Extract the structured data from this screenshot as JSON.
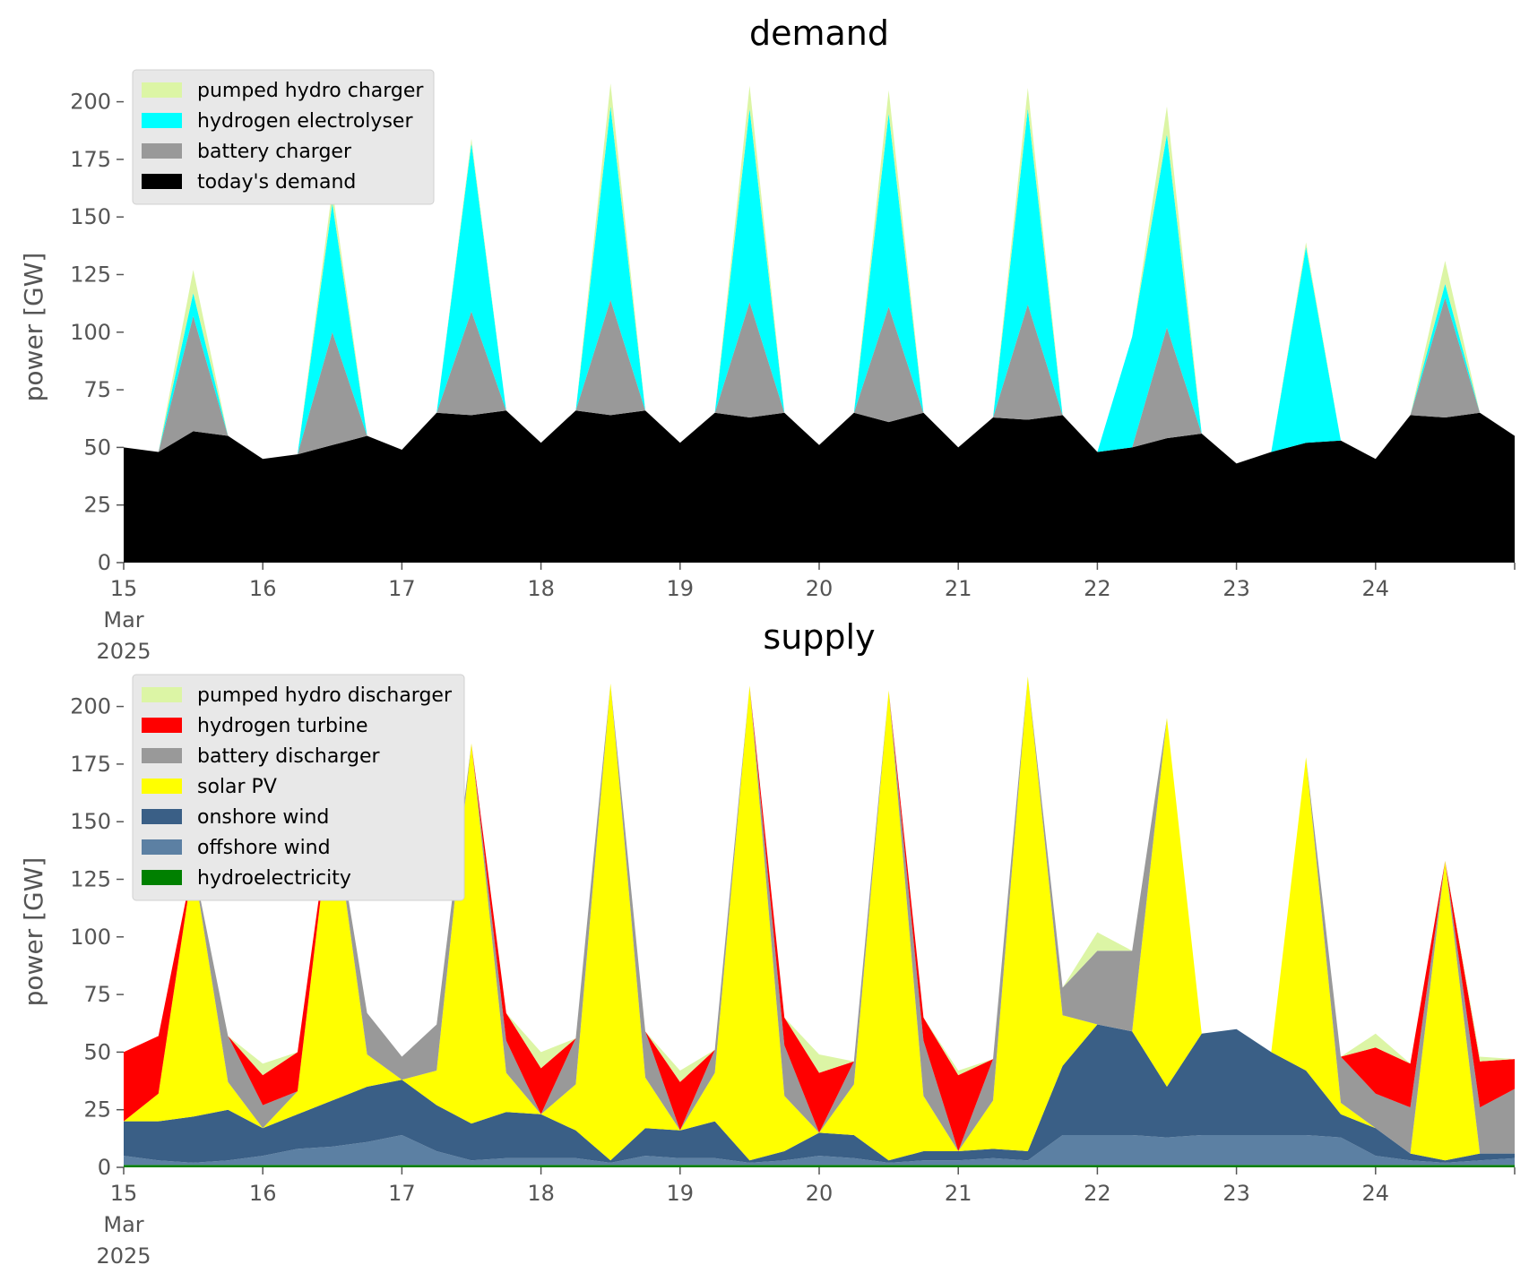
{
  "chart_data": [
    {
      "type": "area",
      "title": "demand",
      "ylabel": "power [GW]",
      "xlabel": "",
      "ylim": [
        0,
        215
      ],
      "yticks": [
        0,
        25,
        50,
        75,
        100,
        125,
        150,
        175,
        200
      ],
      "x_tick_labels": [
        "15\nMar\n2025",
        "16",
        "17",
        "18",
        "19",
        "20",
        "21",
        "22",
        "23",
        "24"
      ],
      "x_range_days": [
        "2025-03-15",
        "2025-03-25"
      ],
      "legend_position": "upper-left",
      "legend": [
        "pumped hydro charger",
        "hydrogen electrolyser",
        "battery charger",
        "today's demand"
      ],
      "stacked": true,
      "x": [
        15.0,
        15.25,
        15.5,
        15.75,
        16.0,
        16.25,
        16.5,
        16.75,
        17.0,
        17.25,
        17.5,
        17.75,
        18.0,
        18.25,
        18.5,
        18.75,
        19.0,
        19.25,
        19.5,
        19.75,
        20.0,
        20.25,
        20.5,
        20.75,
        21.0,
        21.25,
        21.5,
        21.75,
        22.0,
        22.25,
        22.5,
        22.75,
        23.0,
        23.25,
        23.5,
        23.75,
        24.0,
        24.25,
        24.5,
        24.75,
        25.0
      ],
      "series": [
        {
          "name": "today's demand",
          "color": "#000000",
          "values": [
            50,
            48,
            57,
            55,
            45,
            47,
            51,
            55,
            49,
            65,
            64,
            66,
            52,
            66,
            64,
            66,
            52,
            65,
            63,
            65,
            51,
            65,
            61,
            65,
            50,
            63,
            62,
            64,
            48,
            50,
            54,
            56,
            43,
            48,
            52,
            53,
            45,
            64,
            63,
            65,
            55
          ]
        },
        {
          "name": "battery charger",
          "color": "#999999",
          "values": [
            0,
            0,
            50,
            0,
            0,
            0,
            49,
            0,
            0,
            0,
            45,
            0,
            0,
            0,
            50,
            0,
            0,
            0,
            50,
            0,
            0,
            0,
            50,
            0,
            0,
            0,
            50,
            0,
            0,
            0,
            48,
            0,
            0,
            0,
            0,
            0,
            0,
            0,
            52,
            0,
            0
          ]
        },
        {
          "name": "hydrogen electrolyser",
          "color": "#00ffff",
          "values": [
            0,
            0,
            10,
            0,
            0,
            0,
            56,
            0,
            0,
            0,
            73,
            0,
            0,
            0,
            84,
            0,
            0,
            0,
            84,
            0,
            0,
            0,
            84,
            0,
            0,
            0,
            85,
            0,
            0,
            48,
            84,
            0,
            0,
            0,
            85,
            0,
            0,
            0,
            6,
            0,
            0
          ]
        },
        {
          "name": "pumped hydro charger",
          "color": "#dcf5a5",
          "values": [
            0,
            0,
            10,
            0,
            0,
            0,
            6,
            0,
            0,
            0,
            2,
            0,
            0,
            0,
            10,
            0,
            0,
            0,
            10,
            0,
            0,
            0,
            10,
            0,
            0,
            0,
            9,
            0,
            0,
            0,
            12,
            0,
            0,
            0,
            2,
            0,
            0,
            0,
            10,
            0,
            0
          ]
        }
      ]
    },
    {
      "type": "area",
      "title": "supply",
      "ylabel": "power [GW]",
      "xlabel": "",
      "ylim": [
        0,
        215
      ],
      "yticks": [
        0,
        25,
        50,
        75,
        100,
        125,
        150,
        175,
        200
      ],
      "x_tick_labels": [
        "15\nMar\n2025",
        "16",
        "17",
        "18",
        "19",
        "20",
        "21",
        "22",
        "23",
        "24"
      ],
      "x_range_days": [
        "2025-03-15",
        "2025-03-25"
      ],
      "legend_position": "upper-left",
      "legend": [
        "pumped hydro discharger",
        "hydrogen turbine",
        "battery discharger",
        "solar PV",
        "onshore wind",
        "offshore wind",
        "hydroelectricity"
      ],
      "stacked": true,
      "x": [
        15.0,
        15.25,
        15.5,
        15.75,
        16.0,
        16.25,
        16.5,
        16.75,
        17.0,
        17.25,
        17.5,
        17.75,
        18.0,
        18.25,
        18.5,
        18.75,
        19.0,
        19.25,
        19.5,
        19.75,
        20.0,
        20.25,
        20.5,
        20.75,
        21.0,
        21.25,
        21.5,
        21.75,
        22.0,
        22.25,
        22.5,
        22.75,
        23.0,
        23.25,
        23.5,
        23.75,
        24.0,
        24.25,
        24.5,
        24.75,
        25.0
      ],
      "series": [
        {
          "name": "hydroelectricity",
          "color": "#008000",
          "values": [
            1,
            1,
            1,
            1,
            1,
            1,
            1,
            1,
            1,
            1,
            1,
            1,
            1,
            1,
            1,
            1,
            1,
            1,
            1,
            1,
            1,
            1,
            1,
            1,
            1,
            1,
            1,
            1,
            1,
            1,
            1,
            1,
            1,
            1,
            1,
            1,
            1,
            1,
            1,
            1,
            1
          ]
        },
        {
          "name": "offshore wind",
          "color": "#5c80a3",
          "values": [
            4,
            2,
            1,
            2,
            4,
            7,
            8,
            10,
            13,
            6,
            2,
            3,
            3,
            3,
            1,
            4,
            3,
            3,
            1,
            2,
            4,
            3,
            1,
            2,
            2,
            3,
            2,
            13,
            13,
            13,
            12,
            13,
            13,
            13,
            13,
            12,
            4,
            2,
            1,
            2,
            3
          ]
        },
        {
          "name": "onshore wind",
          "color": "#3a5f86",
          "values": [
            15,
            17,
            20,
            22,
            12,
            15,
            20,
            24,
            24,
            20,
            16,
            20,
            19,
            12,
            1,
            12,
            12,
            16,
            1,
            4,
            10,
            10,
            1,
            4,
            4,
            4,
            4,
            30,
            48,
            45,
            22,
            44,
            46,
            36,
            28,
            10,
            12,
            3,
            1,
            3,
            2
          ]
        },
        {
          "name": "solar PV",
          "color": "#ffff00",
          "values": [
            0,
            12,
            110,
            12,
            0,
            10,
            130,
            14,
            0,
            15,
            165,
            17,
            0,
            20,
            207,
            22,
            0,
            21,
            206,
            24,
            0,
            22,
            204,
            24,
            0,
            21,
            206,
            22,
            0,
            0,
            160,
            0,
            0,
            0,
            136,
            5,
            0,
            0,
            130,
            0,
            0
          ]
        },
        {
          "name": "battery discharger",
          "color": "#999999",
          "values": [
            0,
            0,
            0,
            20,
            10,
            0,
            0,
            18,
            10,
            20,
            0,
            14,
            0,
            20,
            0,
            20,
            0,
            10,
            0,
            22,
            0,
            10,
            0,
            24,
            0,
            18,
            0,
            12,
            32,
            35,
            0,
            0,
            0,
            0,
            0,
            20,
            15,
            20,
            0,
            20,
            28
          ]
        },
        {
          "name": "hydrogen turbine",
          "color": "#ff0000",
          "values": [
            30,
            25,
            0,
            0,
            13,
            17,
            0,
            0,
            0,
            0,
            0,
            12,
            20,
            0,
            0,
            0,
            21,
            0,
            0,
            12,
            26,
            0,
            0,
            10,
            33,
            0,
            0,
            0,
            0,
            0,
            0,
            0,
            0,
            0,
            0,
            0,
            20,
            19,
            0,
            20,
            13
          ]
        },
        {
          "name": "pumped hydro discharger",
          "color": "#dcf5a5",
          "values": [
            0,
            0,
            0,
            0,
            5,
            0,
            0,
            0,
            0,
            0,
            0,
            0,
            7,
            0,
            0,
            0,
            5,
            0,
            0,
            0,
            8,
            0,
            0,
            0,
            2,
            0,
            0,
            0,
            8,
            0,
            0,
            0,
            0,
            0,
            0,
            0,
            6,
            0,
            0,
            2,
            0
          ]
        }
      ]
    }
  ]
}
